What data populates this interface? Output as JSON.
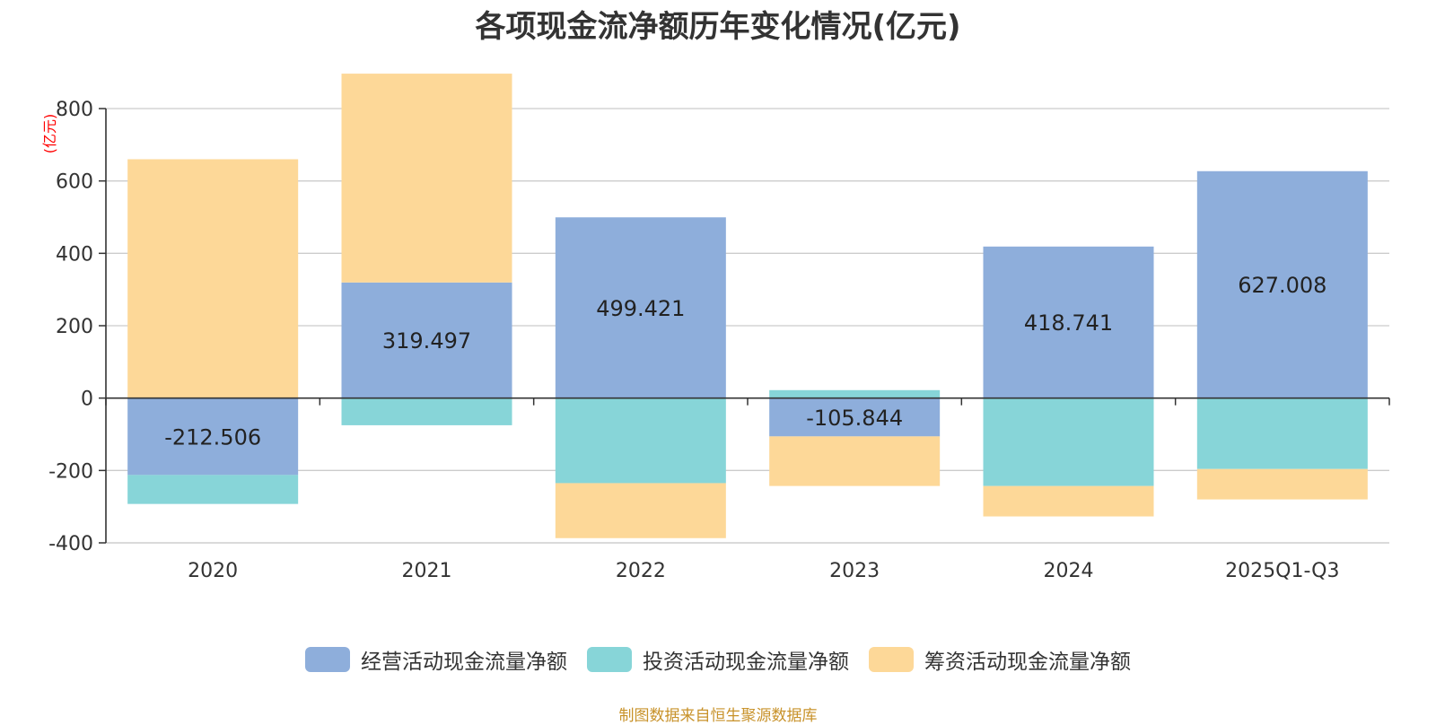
{
  "chart_data": {
    "type": "bar",
    "stacked": true,
    "title": "各项现金流净额历年变化情况(亿元)",
    "ylabel": "(亿元)",
    "ylim": [
      -400,
      800
    ],
    "yticks": [
      800,
      600,
      400,
      200,
      0,
      -200,
      -400
    ],
    "categories": [
      "2020",
      "2021",
      "2022",
      "2023",
      "2024",
      "2025Q1-Q3"
    ],
    "series": [
      {
        "name": "经营活动现金流量净额",
        "color": "#8eaedb",
        "values": [
          -212.506,
          319.497,
          499.421,
          -105.844,
          418.741,
          627.008
        ],
        "labels": [
          "-212.506",
          "319.497",
          "499.421",
          "-105.844",
          "418.741",
          "627.008"
        ]
      },
      {
        "name": "投资活动现金流量净额",
        "color": "#87d5d8",
        "values": [
          -80,
          -75,
          -235,
          22,
          -243,
          -196
        ]
      },
      {
        "name": "筹资活动现金流量净额",
        "color": "#fdd898",
        "values": [
          660,
          577,
          -152,
          -137,
          -84,
          -84
        ]
      }
    ],
    "legend_position": "bottom-center"
  },
  "source_note": "制图数据来自恒生聚源数据库",
  "colors": {
    "axis": "#333333",
    "grid": "#cccccc",
    "unit": "#ff0000",
    "source": "#c8922a"
  }
}
